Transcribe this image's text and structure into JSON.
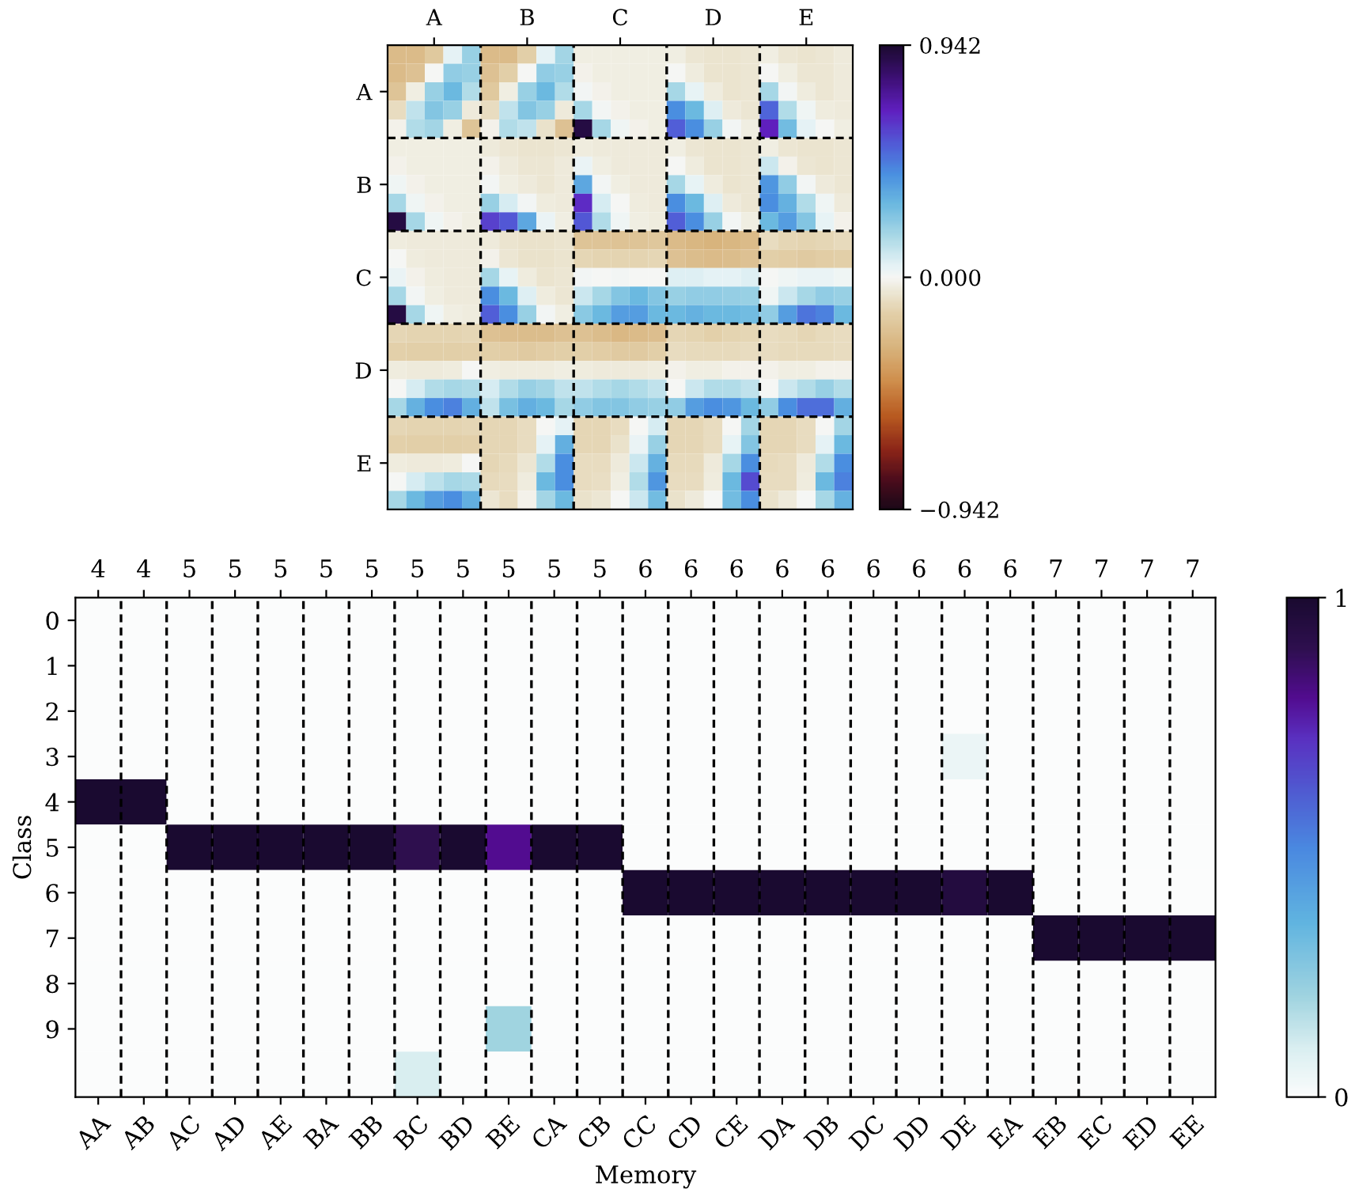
{
  "chart_data": [
    {
      "type": "heatmap",
      "categories": [
        null,
        null,
        "A",
        null,
        null,
        null,
        null,
        "B",
        null,
        null,
        null,
        null,
        "C",
        null,
        null,
        null,
        null,
        "D",
        null,
        null,
        null,
        null,
        "E",
        null,
        null
      ],
      "y_categories": [
        null,
        null,
        "A",
        null,
        null,
        null,
        null,
        "B",
        null,
        null,
        null,
        null,
        "C",
        null,
        null,
        null,
        null,
        "D",
        null,
        null,
        null,
        null,
        "E",
        null,
        null
      ],
      "cells": [
        [
          -0.25,
          -0.25,
          -0.18,
          0.05,
          0.2,
          -0.25,
          -0.25,
          -0.15,
          0.05,
          0.18,
          -0.03,
          -0.03,
          -0.03,
          -0.03,
          -0.03,
          -0.03,
          -0.06,
          -0.07,
          -0.07,
          -0.06,
          -0.03,
          -0.06,
          -0.07,
          -0.06,
          -0.05
        ],
        [
          -0.25,
          -0.22,
          0.0,
          0.22,
          0.2,
          -0.22,
          -0.15,
          0.0,
          0.22,
          0.2,
          -0.02,
          -0.03,
          -0.03,
          -0.03,
          -0.03,
          0.0,
          -0.04,
          -0.07,
          -0.07,
          -0.06,
          0.0,
          -0.03,
          -0.06,
          -0.06,
          -0.05
        ],
        [
          -0.2,
          -0.03,
          0.2,
          0.3,
          0.15,
          -0.18,
          -0.03,
          0.2,
          0.3,
          0.15,
          0.01,
          -0.02,
          -0.03,
          -0.03,
          -0.03,
          0.17,
          0.04,
          -0.04,
          -0.07,
          -0.06,
          0.17,
          0.01,
          -0.04,
          -0.06,
          -0.05
        ],
        [
          -0.1,
          0.12,
          0.25,
          0.2,
          -0.05,
          -0.1,
          0.12,
          0.25,
          0.2,
          -0.05,
          0.17,
          0.01,
          -0.02,
          -0.03,
          -0.03,
          0.42,
          0.3,
          0.06,
          -0.05,
          -0.06,
          0.52,
          0.15,
          0.02,
          -0.04,
          -0.05
        ],
        [
          -0.02,
          0.15,
          0.18,
          -0.03,
          -0.2,
          -0.02,
          0.15,
          0.12,
          -0.08,
          -0.22,
          0.9,
          0.17,
          0.02,
          -0.02,
          -0.03,
          0.53,
          0.42,
          0.2,
          0.01,
          -0.03,
          0.68,
          0.28,
          0.05,
          0.0,
          -0.03
        ],
        [
          -0.03,
          -0.03,
          -0.03,
          -0.03,
          -0.03,
          -0.05,
          -0.06,
          -0.07,
          -0.07,
          -0.06,
          -0.04,
          -0.05,
          -0.05,
          -0.05,
          -0.05,
          -0.03,
          -0.06,
          -0.07,
          -0.07,
          -0.06,
          -0.03,
          -0.06,
          -0.07,
          -0.07,
          -0.06
        ],
        [
          -0.02,
          -0.03,
          -0.03,
          -0.03,
          -0.03,
          -0.02,
          -0.05,
          -0.06,
          -0.06,
          -0.05,
          0.03,
          -0.03,
          -0.05,
          -0.05,
          -0.05,
          0.0,
          -0.04,
          -0.07,
          -0.07,
          -0.06,
          0.1,
          -0.02,
          -0.06,
          -0.07,
          -0.06
        ],
        [
          0.02,
          -0.02,
          -0.03,
          -0.03,
          -0.03,
          0.01,
          -0.03,
          -0.05,
          -0.06,
          -0.05,
          0.35,
          0.01,
          -0.03,
          -0.05,
          -0.05,
          0.17,
          0.04,
          -0.04,
          -0.07,
          -0.06,
          0.4,
          0.22,
          0.01,
          -0.05,
          -0.06
        ],
        [
          0.17,
          0.02,
          -0.02,
          -0.03,
          -0.03,
          0.2,
          0.08,
          0.01,
          -0.04,
          -0.05,
          0.65,
          0.08,
          0.0,
          -0.04,
          -0.05,
          0.42,
          0.3,
          0.06,
          -0.05,
          -0.06,
          0.42,
          0.32,
          0.15,
          0.02,
          -0.05
        ],
        [
          0.9,
          0.17,
          0.02,
          -0.02,
          -0.03,
          0.6,
          0.55,
          0.35,
          0.03,
          -0.03,
          0.55,
          0.15,
          0.02,
          -0.03,
          -0.04,
          0.53,
          0.42,
          0.2,
          0.01,
          -0.03,
          0.3,
          0.38,
          0.25,
          0.04,
          -0.02
        ],
        [
          -0.04,
          -0.05,
          -0.05,
          -0.05,
          -0.05,
          -0.05,
          -0.07,
          -0.08,
          -0.08,
          -0.07,
          -0.2,
          -0.2,
          -0.21,
          -0.2,
          -0.19,
          -0.25,
          -0.27,
          -0.28,
          -0.27,
          -0.25,
          -0.1,
          -0.12,
          -0.13,
          -0.12,
          -0.11
        ],
        [
          0.0,
          -0.04,
          -0.05,
          -0.05,
          -0.05,
          -0.02,
          -0.06,
          -0.08,
          -0.08,
          -0.07,
          -0.12,
          -0.13,
          -0.13,
          -0.13,
          -0.12,
          -0.22,
          -0.24,
          -0.25,
          -0.24,
          -0.22,
          -0.15,
          -0.16,
          -0.17,
          -0.16,
          -0.15
        ],
        [
          0.03,
          -0.02,
          -0.04,
          -0.05,
          -0.05,
          0.17,
          0.04,
          -0.04,
          -0.07,
          -0.06,
          0.01,
          0.0,
          0.01,
          0.0,
          0.0,
          0.06,
          0.06,
          0.05,
          0.05,
          0.06,
          0.0,
          0.02,
          0.03,
          0.03,
          0.02
        ],
        [
          0.17,
          0.01,
          -0.03,
          -0.05,
          -0.05,
          0.42,
          0.3,
          0.06,
          -0.04,
          -0.06,
          0.1,
          0.17,
          0.25,
          0.3,
          0.25,
          0.2,
          0.22,
          0.22,
          0.21,
          0.2,
          0.02,
          0.1,
          0.17,
          0.22,
          0.2
        ],
        [
          0.9,
          0.17,
          0.02,
          -0.03,
          -0.04,
          0.53,
          0.42,
          0.2,
          0.01,
          -0.03,
          0.23,
          0.3,
          0.38,
          0.38,
          0.3,
          0.3,
          0.32,
          0.3,
          0.3,
          0.28,
          0.22,
          0.38,
          0.48,
          0.45,
          0.3
        ],
        [
          -0.12,
          -0.13,
          -0.13,
          -0.13,
          -0.12,
          -0.22,
          -0.23,
          -0.24,
          -0.24,
          -0.22,
          -0.22,
          -0.24,
          -0.26,
          -0.25,
          -0.23,
          -0.12,
          -0.13,
          -0.14,
          -0.13,
          -0.12,
          -0.1,
          -0.11,
          -0.12,
          -0.11,
          -0.1
        ],
        [
          -0.14,
          -0.15,
          -0.15,
          -0.15,
          -0.14,
          -0.15,
          -0.16,
          -0.17,
          -0.16,
          -0.15,
          -0.15,
          -0.16,
          -0.17,
          -0.17,
          -0.15,
          -0.1,
          -0.11,
          -0.11,
          -0.11,
          -0.1,
          -0.1,
          -0.11,
          -0.11,
          -0.11,
          -0.1
        ],
        [
          -0.04,
          -0.05,
          -0.05,
          -0.04,
          0.0,
          -0.03,
          -0.04,
          -0.04,
          -0.04,
          -0.03,
          -0.04,
          -0.05,
          -0.05,
          -0.05,
          -0.04,
          -0.02,
          -0.03,
          -0.03,
          -0.02,
          -0.02,
          -0.02,
          -0.03,
          -0.03,
          -0.02,
          -0.02
        ],
        [
          0.0,
          0.08,
          0.15,
          0.17,
          0.16,
          0.08,
          0.15,
          0.2,
          0.18,
          0.12,
          0.12,
          0.15,
          0.17,
          0.15,
          0.12,
          0.0,
          0.1,
          0.15,
          0.15,
          0.12,
          0.0,
          0.1,
          0.15,
          0.2,
          0.15
        ],
        [
          0.17,
          0.32,
          0.42,
          0.45,
          0.33,
          0.12,
          0.27,
          0.33,
          0.3,
          0.17,
          0.22,
          0.25,
          0.25,
          0.22,
          0.2,
          0.22,
          0.38,
          0.42,
          0.4,
          0.3,
          0.22,
          0.42,
          0.5,
          0.5,
          0.33
        ],
        [
          -0.12,
          -0.13,
          -0.13,
          -0.13,
          -0.12,
          -0.12,
          -0.12,
          -0.1,
          0.0,
          0.05,
          -0.12,
          -0.12,
          -0.1,
          0.0,
          0.08,
          -0.12,
          -0.12,
          -0.1,
          0.0,
          0.18,
          -0.12,
          -0.12,
          -0.1,
          0.0,
          0.18
        ],
        [
          -0.14,
          -0.15,
          -0.15,
          -0.15,
          -0.14,
          -0.12,
          -0.12,
          -0.1,
          0.05,
          0.33,
          -0.12,
          -0.12,
          -0.08,
          0.03,
          0.2,
          -0.12,
          -0.12,
          -0.1,
          0.04,
          0.25,
          -0.12,
          -0.12,
          -0.1,
          0.05,
          0.3
        ],
        [
          -0.04,
          -0.05,
          -0.05,
          -0.04,
          0.0,
          -0.12,
          -0.11,
          -0.06,
          0.15,
          0.42,
          -0.1,
          -0.1,
          -0.05,
          0.1,
          0.32,
          -0.11,
          -0.11,
          -0.05,
          0.17,
          0.42,
          -0.11,
          -0.1,
          -0.05,
          0.15,
          0.42
        ],
        [
          0.0,
          0.08,
          0.13,
          0.17,
          0.16,
          -0.11,
          -0.1,
          -0.04,
          0.3,
          0.42,
          -0.1,
          -0.09,
          -0.03,
          0.15,
          0.4,
          -0.1,
          -0.1,
          -0.04,
          0.3,
          0.58,
          -0.1,
          -0.1,
          -0.04,
          0.3,
          0.45
        ],
        [
          0.17,
          0.3,
          0.38,
          0.42,
          0.33,
          -0.06,
          -0.1,
          -0.02,
          0.18,
          0.3,
          -0.08,
          -0.06,
          0.0,
          0.1,
          0.28,
          -0.08,
          -0.05,
          0.0,
          0.28,
          0.42,
          -0.08,
          -0.05,
          0.0,
          0.17,
          0.32
        ]
      ],
      "clim": [
        -0.942,
        0.942
      ],
      "cticks": [
        {
          "value": -0.942,
          "label": "−0.942"
        },
        {
          "value": 0,
          "label": "0.000"
        },
        0.942
      ],
      "grid": true
    },
    {
      "type": "heatmap",
      "categories": [
        "AA",
        "AB",
        "AC",
        "AD",
        "AE",
        "BA",
        "BB",
        "BC",
        "BD",
        "BE",
        "CA",
        "CB",
        "CC",
        "CD",
        "CE",
        "DA",
        "DB",
        "DC",
        "DD",
        "DE",
        "EA",
        "EB",
        "EC",
        "ED",
        "EE"
      ],
      "annotations": [
        "4",
        "4",
        "5",
        "5",
        "5",
        "5",
        "5",
        "5",
        "5",
        "5",
        "5",
        "5",
        "6",
        "6",
        "6",
        "6",
        "6",
        "6",
        "6",
        "6",
        "6",
        "7",
        "7",
        "7",
        "7"
      ],
      "y_categories": [
        "0",
        "1",
        "2",
        "3",
        "4",
        "5",
        "6",
        "7",
        "8",
        "9",
        null
      ],
      "cells": [
        [
          0,
          0,
          0,
          0,
          0,
          0,
          0,
          0,
          0,
          0,
          0,
          0,
          0,
          0,
          0,
          0,
          0,
          0,
          0,
          0,
          0,
          0,
          0,
          0,
          0
        ],
        [
          0,
          0,
          0,
          0,
          0,
          0,
          0,
          0,
          0,
          0,
          0,
          0,
          0,
          0,
          0,
          0,
          0,
          0,
          0,
          0,
          0,
          0,
          0,
          0,
          0
        ],
        [
          0,
          0,
          0,
          0,
          0,
          0,
          0,
          0,
          0,
          0,
          0,
          0,
          0,
          0,
          0,
          0,
          0,
          0,
          0,
          0,
          0,
          0,
          0,
          0,
          0
        ],
        [
          0,
          0,
          0,
          0,
          0,
          0,
          0,
          0,
          0,
          0,
          0,
          0,
          0,
          0,
          0,
          0,
          0,
          0,
          0,
          0.05,
          0,
          0,
          0,
          0,
          0
        ],
        [
          1,
          1,
          0,
          0,
          0,
          0,
          0,
          0,
          0,
          0,
          0,
          0,
          0,
          0,
          0,
          0,
          0,
          0,
          0,
          0,
          0,
          0,
          0,
          0,
          0
        ],
        [
          0,
          0,
          1,
          1,
          1,
          1,
          1,
          0.9,
          1,
          0.8,
          1,
          1,
          0,
          0,
          0,
          0,
          0,
          0,
          0,
          0,
          0,
          0,
          0,
          0,
          0
        ],
        [
          0,
          0,
          0,
          0,
          0,
          0,
          0,
          0,
          0,
          0,
          0,
          0,
          1,
          1,
          1,
          1,
          1,
          1,
          1,
          0.95,
          1,
          0,
          0,
          0,
          0
        ],
        [
          0,
          0,
          0,
          0,
          0,
          0,
          0,
          0,
          0,
          0,
          0,
          0,
          0,
          0,
          0,
          0,
          0,
          0,
          0,
          0,
          0,
          1,
          1,
          1,
          1
        ],
        [
          0,
          0,
          0,
          0,
          0,
          0,
          0,
          0,
          0,
          0,
          0,
          0,
          0,
          0,
          0,
          0,
          0,
          0,
          0,
          0,
          0,
          0,
          0,
          0,
          0
        ],
        [
          0,
          0,
          0,
          0,
          0,
          0,
          0,
          0,
          0,
          0.2,
          0,
          0,
          0,
          0,
          0,
          0,
          0,
          0,
          0,
          0,
          0,
          0,
          0,
          0,
          0
        ],
        [
          0,
          0,
          0,
          0,
          0,
          0,
          0,
          0.1,
          0,
          0,
          0,
          0,
          0,
          0,
          0,
          0,
          0,
          0,
          0,
          0,
          0,
          0,
          0,
          0,
          0
        ]
      ],
      "clim": [
        0,
        1
      ],
      "cticks": [
        0,
        1
      ],
      "grid": "x",
      "xlabel": "Memory",
      "ylabel": "Class"
    }
  ]
}
